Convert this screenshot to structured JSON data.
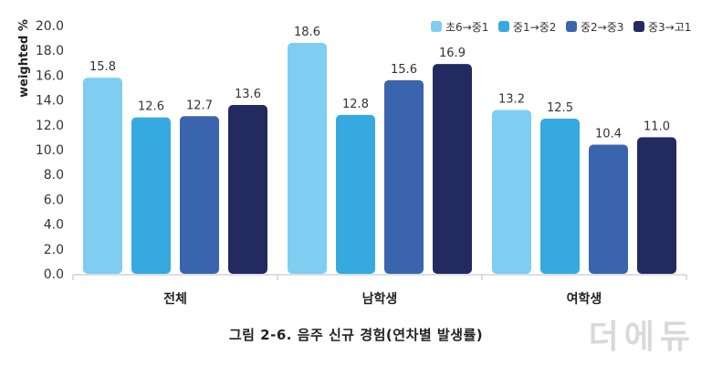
{
  "chart_data": {
    "type": "bar",
    "ylabel": "weighted %",
    "ylim": [
      0,
      20
    ],
    "yticks": [
      "0.0",
      "2.0",
      "4.0",
      "6.0",
      "8.0",
      "10.0",
      "12.0",
      "14.0",
      "16.0",
      "18.0",
      "20.0"
    ],
    "categories": [
      "전체",
      "남학생",
      "여학생"
    ],
    "series": [
      {
        "name": "초6→중1",
        "color": "#7fcdf1",
        "values": [
          15.8,
          18.6,
          13.2
        ]
      },
      {
        "name": "중1→중2",
        "color": "#36a9e1",
        "values": [
          12.6,
          12.8,
          12.5
        ]
      },
      {
        "name": "중2→중3",
        "color": "#3a64ad",
        "values": [
          12.7,
          15.6,
          10.4
        ]
      },
      {
        "name": "중3→고1",
        "color": "#232a5f",
        "values": [
          13.6,
          16.9,
          11.0
        ]
      }
    ],
    "legend_position": "top-right"
  },
  "caption": "그림 2-6. 음주 신규 경험(연차별 발생률)",
  "watermark": "더에듀"
}
